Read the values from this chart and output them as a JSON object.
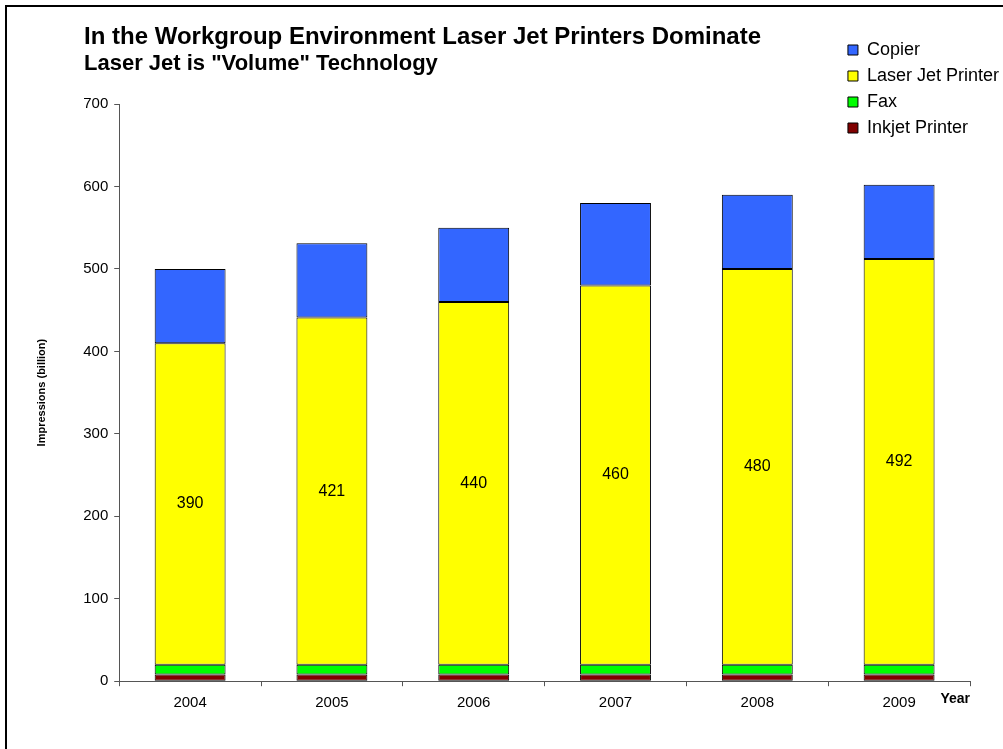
{
  "chart_data": {
    "type": "bar",
    "title": "In the Workgroup Environment Laser Jet Printers Dominate",
    "subtitle": "Laser Jet is \"Volume\" Technology",
    "xlabel": "Year",
    "ylabel": "Impressions (billion)",
    "categories": [
      "2004",
      "2005",
      "2006",
      "2007",
      "2008",
      "2009"
    ],
    "stacked": true,
    "series": [
      {
        "name": "Inkjet Printer",
        "color": "#800000",
        "values": [
          8,
          8,
          8,
          8,
          8,
          8
        ]
      },
      {
        "name": "Fax",
        "color": "#00ff00",
        "values": [
          12,
          12,
          12,
          12,
          12,
          12
        ]
      },
      {
        "name": "Laser Jet Printer",
        "color": "#ffff00",
        "values": [
          390,
          421,
          440,
          460,
          480,
          492
        ],
        "value_labels": [
          "390",
          "421",
          "440",
          "460",
          "480",
          "492"
        ]
      },
      {
        "name": "Copier",
        "color": "#3366ff",
        "values": [
          90,
          90,
          90,
          100,
          90,
          90
        ]
      }
    ],
    "ylim": [
      0,
      700
    ],
    "yticks": [
      0,
      100,
      200,
      300,
      400,
      500,
      600,
      700
    ],
    "grid": false,
    "legend": "top right"
  }
}
